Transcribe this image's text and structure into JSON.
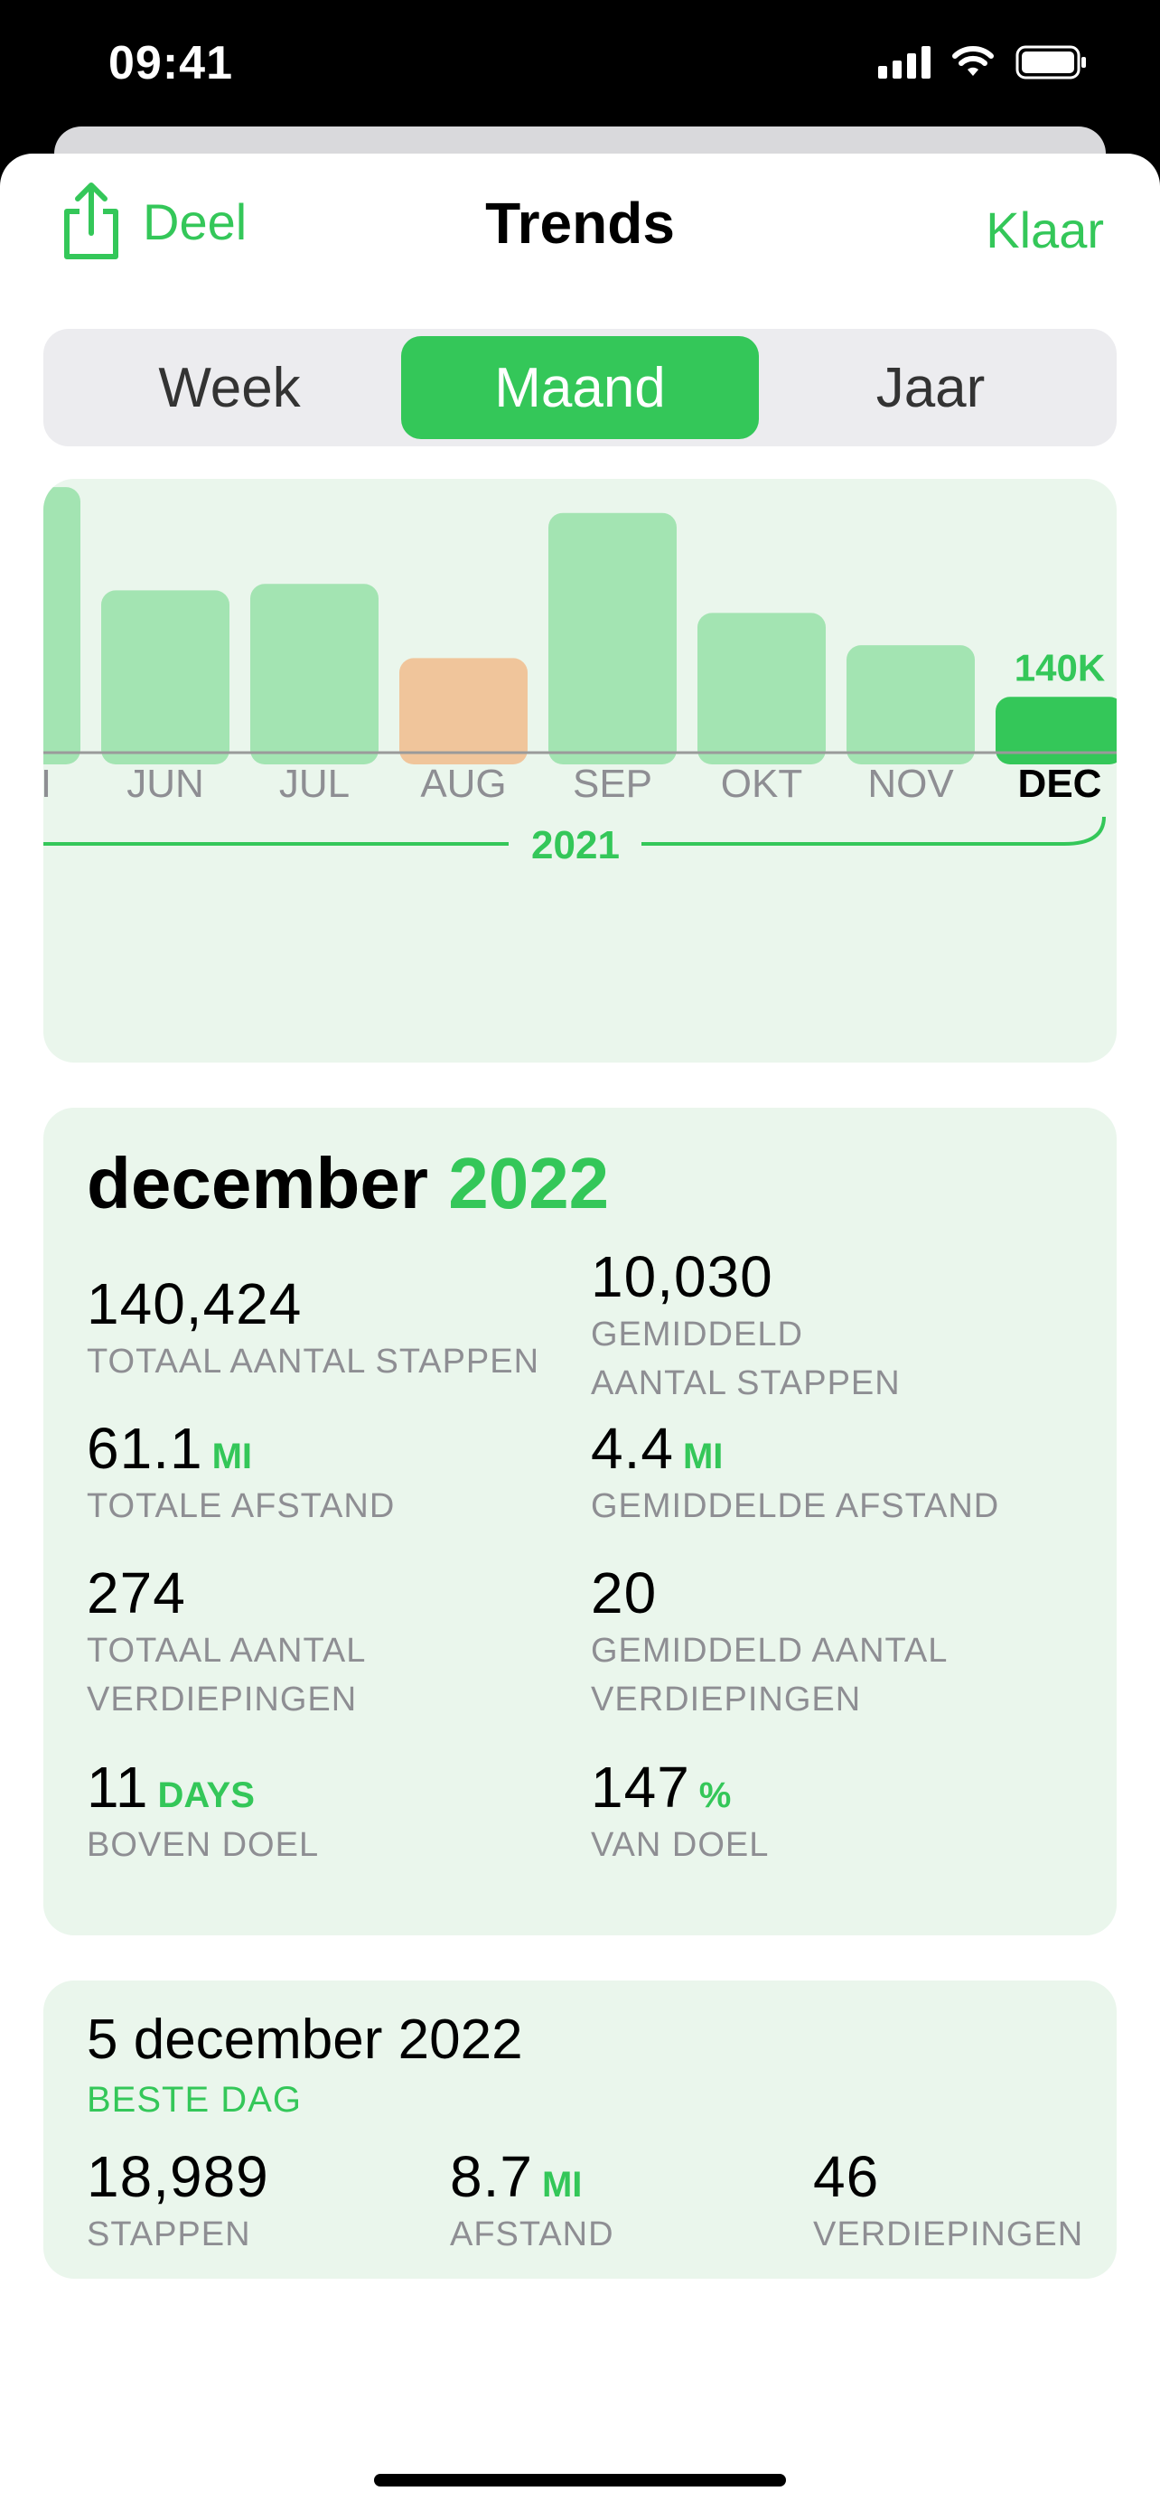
{
  "status_bar": {
    "time": "09:41"
  },
  "nav": {
    "share_label": "Deel",
    "title": "Trends",
    "done_label": "Klaar"
  },
  "segments": [
    {
      "label": "Week",
      "active": false
    },
    {
      "label": "Maand",
      "active": true
    },
    {
      "label": "Jaar",
      "active": false
    }
  ],
  "colors": {
    "accent": "#34c759",
    "bar": "#a3e4b2",
    "bar_highlight": "#f0c59b",
    "card_bg": "#eaf6ec"
  },
  "chart_data": {
    "type": "bar",
    "categories": [
      "MEI",
      "JUN",
      "JUL",
      "AUG",
      "SEP",
      "OKT",
      "NOV",
      "DEC"
    ],
    "values": [
      410,
      250,
      260,
      145,
      370,
      215,
      165,
      85
    ],
    "highlight_index": 3,
    "selected_index": 7,
    "selected_value_label": "140K",
    "year_label": "2021"
  },
  "summary": {
    "month": "december",
    "year": "2022",
    "stats": [
      {
        "value": "140,424",
        "unit": "",
        "label_lines": [
          "TOTAAL AANTAL STAPPEN"
        ]
      },
      {
        "value": "10,030",
        "unit": "",
        "label_lines": [
          "GEMIDDELD",
          "AANTAL STAPPEN"
        ]
      },
      {
        "value": "61.1",
        "unit": "MI",
        "label_lines": [
          "TOTALE AFSTAND"
        ]
      },
      {
        "value": "4.4",
        "unit": "MI",
        "label_lines": [
          "GEMIDDELDE AFSTAND"
        ]
      },
      {
        "value": "274",
        "unit": "",
        "label_lines": [
          "TOTAAL AANTAL",
          "VERDIEPINGEN"
        ]
      },
      {
        "value": "20",
        "unit": "",
        "label_lines": [
          "GEMIDDELD AANTAL",
          "VERDIEPINGEN"
        ]
      },
      {
        "value": "11",
        "unit": "DAYS",
        "label_lines": [
          "BOVEN DOEL"
        ]
      },
      {
        "value": "147",
        "unit": "%",
        "label_lines": [
          "VAN DOEL"
        ]
      }
    ]
  },
  "best_day": {
    "date": "5 december 2022",
    "subtitle": "BESTE DAG",
    "stats": [
      {
        "value": "18,989",
        "unit": "",
        "label": "STAPPEN"
      },
      {
        "value": "8.7",
        "unit": "MI",
        "label": "AFSTAND"
      },
      {
        "value": "46",
        "unit": "",
        "label": "VERDIEPINGEN"
      }
    ]
  }
}
